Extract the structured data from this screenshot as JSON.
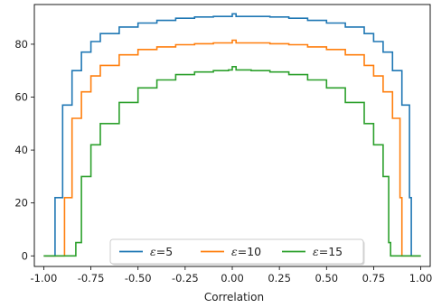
{
  "chart_data": {
    "type": "line",
    "xlabel": "Correlation",
    "ylabel": "",
    "xlim": [
      -1.05,
      1.05
    ],
    "ylim": [
      -4,
      95
    ],
    "xticks": [
      "-1.00",
      "-0.75",
      "-0.50",
      "-0.25",
      "0.00",
      "0.25",
      "0.50",
      "0.75",
      "1.00"
    ],
    "yticks": [
      "0",
      "20",
      "40",
      "60",
      "80"
    ],
    "grid": false,
    "legend_position": "lower-center",
    "series": [
      {
        "legend_symbol": "ε",
        "legend_value": "=5",
        "color": "#1f77b4",
        "x": [
          -1.0,
          -0.95,
          -0.94,
          -0.9,
          -0.85,
          -0.8,
          -0.75,
          -0.7,
          -0.6,
          -0.5,
          -0.4,
          -0.3,
          -0.2,
          -0.1,
          -0.02,
          0.0,
          0.02,
          0.1,
          0.2,
          0.3,
          0.4,
          0.5,
          0.6,
          0.7,
          0.75,
          0.8,
          0.85,
          0.9,
          0.94,
          0.95,
          1.0
        ],
        "y": [
          0,
          0,
          22,
          57,
          70,
          77,
          81,
          84,
          86.5,
          88,
          89,
          89.8,
          90.3,
          90.5,
          90.5,
          91.5,
          90.5,
          90.5,
          90.3,
          89.8,
          89,
          88,
          86.5,
          84,
          81,
          77,
          70,
          57,
          22,
          0,
          0
        ]
      },
      {
        "legend_symbol": "ε",
        "legend_value": "=10",
        "color": "#ff7f0e",
        "x": [
          -1.0,
          -0.9,
          -0.89,
          -0.85,
          -0.8,
          -0.75,
          -0.7,
          -0.6,
          -0.5,
          -0.4,
          -0.3,
          -0.2,
          -0.1,
          -0.02,
          0.0,
          0.02,
          0.1,
          0.2,
          0.3,
          0.4,
          0.5,
          0.6,
          0.7,
          0.75,
          0.8,
          0.85,
          0.89,
          0.9,
          1.0
        ],
        "y": [
          0,
          0,
          22,
          52,
          62,
          68,
          72,
          76,
          78,
          79,
          79.8,
          80.2,
          80.5,
          80.5,
          81.5,
          80.5,
          80.5,
          80.2,
          79.8,
          79,
          78,
          76,
          72,
          68,
          62,
          52,
          22,
          0,
          0
        ]
      },
      {
        "legend_symbol": "ε",
        "legend_value": "=15",
        "color": "#2ca02c",
        "x": [
          -1.0,
          -0.84,
          -0.83,
          -0.8,
          -0.75,
          -0.7,
          -0.6,
          -0.5,
          -0.4,
          -0.3,
          -0.2,
          -0.1,
          -0.02,
          0.0,
          0.02,
          0.1,
          0.2,
          0.3,
          0.4,
          0.5,
          0.6,
          0.7,
          0.75,
          0.8,
          0.83,
          0.84,
          1.0
        ],
        "y": [
          0,
          0,
          5,
          30,
          42,
          50,
          58,
          63.5,
          66.5,
          68.5,
          69.5,
          70,
          70.3,
          71.5,
          70.3,
          70,
          69.5,
          68.5,
          66.5,
          63.5,
          58,
          50,
          42,
          30,
          5,
          0,
          0
        ]
      }
    ]
  }
}
